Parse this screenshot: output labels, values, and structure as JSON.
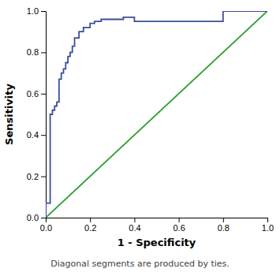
{
  "chart_data": {
    "type": "line",
    "xlabel": "1 - Specificity",
    "ylabel": "Sensitivity",
    "caption": "Diagonal segments are produced by ties.",
    "xlim": [
      0.0,
      1.0
    ],
    "ylim": [
      0.0,
      1.0
    ],
    "xticks": [
      {
        "value": 0.0,
        "label": "0.0"
      },
      0.2,
      0.4,
      0.6,
      0.8,
      {
        "value": 1.0,
        "label": "1.0"
      }
    ],
    "yticks": [
      {
        "value": 0.0,
        "label": "0.0"
      },
      0.2,
      0.4,
      0.6,
      0.8,
      {
        "value": 1.0,
        "label": "1.0"
      }
    ],
    "grid": false,
    "series": [
      {
        "color": "#2e9e2e",
        "x": [
          0.0,
          1.0
        ],
        "values": [
          0.0,
          1.0
        ]
      },
      {
        "color": "#3a4f9a",
        "x": [
          0.0,
          0.0,
          0.02,
          0.02,
          0.03,
          0.03,
          0.04,
          0.04,
          0.05,
          0.05,
          0.06,
          0.06,
          0.07,
          0.07,
          0.08,
          0.08,
          0.09,
          0.09,
          0.1,
          0.1,
          0.11,
          0.11,
          0.12,
          0.12,
          0.13,
          0.13,
          0.15,
          0.15,
          0.17,
          0.17,
          0.2,
          0.2,
          0.22,
          0.22,
          0.25,
          0.25,
          0.35,
          0.35,
          0.4,
          0.4,
          0.8,
          0.8,
          1.0,
          1.0
        ],
        "values": [
          0.0,
          0.07,
          0.07,
          0.5,
          0.5,
          0.52,
          0.52,
          0.54,
          0.54,
          0.56,
          0.56,
          0.67,
          0.67,
          0.7,
          0.7,
          0.72,
          0.72,
          0.75,
          0.75,
          0.78,
          0.78,
          0.8,
          0.8,
          0.83,
          0.83,
          0.87,
          0.87,
          0.9,
          0.9,
          0.92,
          0.92,
          0.94,
          0.94,
          0.95,
          0.95,
          0.96,
          0.96,
          0.97,
          0.97,
          0.95,
          0.95,
          1.0,
          1.0,
          1.0
        ]
      }
    ]
  }
}
